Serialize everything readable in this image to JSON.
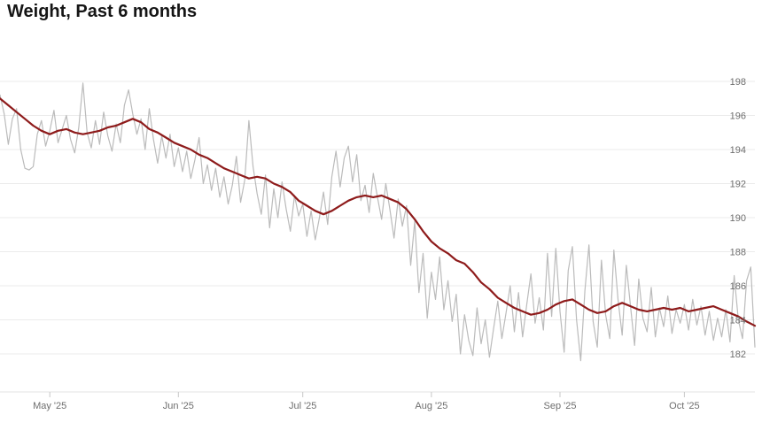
{
  "page": {
    "title": "Weight, Past 6 months"
  },
  "chart_data": {
    "type": "line",
    "title": "Weight, Past 6 months",
    "xlabel": "",
    "ylabel": "",
    "grid": "horizontal",
    "legend": "none",
    "y_ticks": [
      182,
      184,
      186,
      188,
      190,
      192,
      194,
      196,
      198
    ],
    "ylim": [
      179.8,
      199.7
    ],
    "n_points": 183,
    "x_ticks": [
      {
        "label": "May '25",
        "index": 12
      },
      {
        "label": "Jun '25",
        "index": 43
      },
      {
        "label": "Jul '25",
        "index": 73
      },
      {
        "label": "Aug '25",
        "index": 104
      },
      {
        "label": "Sep '25",
        "index": 135
      },
      {
        "label": "Oct '25",
        "index": 165
      }
    ],
    "colors": {
      "gridline": "#ebebeb",
      "axis_line": "#e3e3e3",
      "tick_mark": "#c8c8c8",
      "axis_label": "#6e6e6e",
      "title": "#151515",
      "daily_line": "#bbbbbb",
      "trend_line": "#8e1b1b"
    },
    "series": [
      {
        "name": "daily-weight",
        "color": "#bbbbbb",
        "stroke_width": 1.2,
        "values": [
          197.2,
          196.1,
          194.3,
          195.8,
          196.4,
          194.0,
          192.9,
          192.8,
          193.0,
          194.9,
          195.7,
          194.2,
          195.1,
          196.3,
          194.4,
          195.2,
          196.0,
          194.6,
          193.8,
          195.3,
          197.9,
          195.0,
          194.1,
          195.7,
          194.3,
          196.2,
          194.8,
          193.9,
          195.5,
          194.4,
          196.6,
          197.5,
          196.1,
          194.9,
          195.8,
          194.0,
          196.4,
          194.6,
          193.2,
          194.8,
          193.5,
          194.9,
          193.0,
          194.1,
          192.7,
          193.9,
          192.3,
          193.4,
          194.7,
          192.0,
          193.1,
          191.6,
          192.9,
          191.2,
          192.4,
          190.8,
          191.9,
          193.6,
          190.9,
          192.2,
          195.7,
          193.0,
          191.4,
          190.2,
          192.5,
          189.4,
          191.7,
          190.0,
          192.1,
          190.5,
          189.2,
          191.3,
          190.1,
          190.8,
          188.9,
          190.4,
          188.7,
          190.0,
          191.5,
          189.6,
          192.4,
          193.9,
          191.8,
          193.5,
          194.2,
          192.1,
          193.7,
          191.0,
          191.9,
          190.3,
          192.6,
          191.2,
          189.9,
          192.0,
          190.5,
          188.8,
          191.1,
          189.5,
          190.7,
          187.2,
          189.8,
          185.6,
          187.9,
          184.1,
          186.8,
          185.2,
          187.7,
          184.6,
          186.3,
          183.9,
          185.5,
          182.0,
          184.3,
          182.8,
          181.9,
          184.7,
          182.6,
          184.0,
          181.8,
          183.5,
          185.1,
          182.9,
          184.4,
          186.0,
          183.3,
          185.6,
          183.0,
          184.9,
          186.7,
          183.8,
          185.3,
          183.4,
          187.9,
          184.2,
          188.2,
          184.5,
          182.1,
          186.9,
          188.3,
          184.0,
          181.6,
          185.7,
          188.4,
          183.9,
          182.4,
          187.5,
          184.3,
          182.9,
          188.1,
          185.2,
          183.1,
          187.2,
          184.8,
          182.5,
          186.4,
          184.1,
          183.3,
          185.9,
          183.0,
          184.7,
          183.6,
          185.4,
          183.2,
          184.6,
          183.8,
          184.9,
          183.4,
          185.2,
          183.7,
          184.8,
          183.1,
          184.5,
          182.8,
          184.1,
          183.0,
          184.6,
          182.7,
          186.6,
          184.0,
          182.9,
          186.3,
          187.1,
          182.4
        ]
      },
      {
        "name": "trend-moving-average",
        "color": "#8e1b1b",
        "stroke_width": 2.2,
        "points": [
          [
            0,
            197.0
          ],
          [
            2,
            196.6
          ],
          [
            4,
            196.2
          ],
          [
            6,
            195.8
          ],
          [
            8,
            195.4
          ],
          [
            10,
            195.1
          ],
          [
            12,
            194.9
          ],
          [
            14,
            195.1
          ],
          [
            16,
            195.2
          ],
          [
            18,
            195.0
          ],
          [
            20,
            194.9
          ],
          [
            22,
            195.0
          ],
          [
            24,
            195.1
          ],
          [
            26,
            195.3
          ],
          [
            28,
            195.4
          ],
          [
            30,
            195.6
          ],
          [
            32,
            195.8
          ],
          [
            34,
            195.6
          ],
          [
            36,
            195.2
          ],
          [
            38,
            195.0
          ],
          [
            40,
            194.7
          ],
          [
            42,
            194.4
          ],
          [
            44,
            194.2
          ],
          [
            46,
            194.0
          ],
          [
            48,
            193.7
          ],
          [
            50,
            193.5
          ],
          [
            52,
            193.2
          ],
          [
            54,
            192.9
          ],
          [
            56,
            192.7
          ],
          [
            58,
            192.5
          ],
          [
            60,
            192.3
          ],
          [
            62,
            192.4
          ],
          [
            64,
            192.3
          ],
          [
            66,
            192.0
          ],
          [
            68,
            191.8
          ],
          [
            70,
            191.5
          ],
          [
            72,
            191.0
          ],
          [
            74,
            190.7
          ],
          [
            76,
            190.4
          ],
          [
            78,
            190.2
          ],
          [
            80,
            190.4
          ],
          [
            82,
            190.7
          ],
          [
            84,
            191.0
          ],
          [
            86,
            191.2
          ],
          [
            88,
            191.3
          ],
          [
            90,
            191.2
          ],
          [
            92,
            191.3
          ],
          [
            94,
            191.1
          ],
          [
            96,
            190.9
          ],
          [
            98,
            190.5
          ],
          [
            100,
            189.9
          ],
          [
            102,
            189.2
          ],
          [
            104,
            188.6
          ],
          [
            106,
            188.2
          ],
          [
            108,
            187.9
          ],
          [
            110,
            187.5
          ],
          [
            112,
            187.3
          ],
          [
            114,
            186.8
          ],
          [
            116,
            186.2
          ],
          [
            118,
            185.8
          ],
          [
            120,
            185.3
          ],
          [
            122,
            185.0
          ],
          [
            124,
            184.7
          ],
          [
            126,
            184.5
          ],
          [
            128,
            184.3
          ],
          [
            130,
            184.4
          ],
          [
            132,
            184.6
          ],
          [
            134,
            184.9
          ],
          [
            136,
            185.1
          ],
          [
            138,
            185.2
          ],
          [
            140,
            184.9
          ],
          [
            142,
            184.6
          ],
          [
            144,
            184.4
          ],
          [
            146,
            184.5
          ],
          [
            148,
            184.8
          ],
          [
            150,
            185.0
          ],
          [
            152,
            184.8
          ],
          [
            154,
            184.6
          ],
          [
            156,
            184.5
          ],
          [
            158,
            184.6
          ],
          [
            160,
            184.7
          ],
          [
            162,
            184.6
          ],
          [
            164,
            184.7
          ],
          [
            166,
            184.5
          ],
          [
            168,
            184.6
          ],
          [
            170,
            184.7
          ],
          [
            172,
            184.8
          ],
          [
            174,
            184.6
          ],
          [
            176,
            184.4
          ],
          [
            178,
            184.2
          ],
          [
            180,
            183.9
          ],
          [
            182,
            183.65
          ]
        ]
      }
    ]
  }
}
